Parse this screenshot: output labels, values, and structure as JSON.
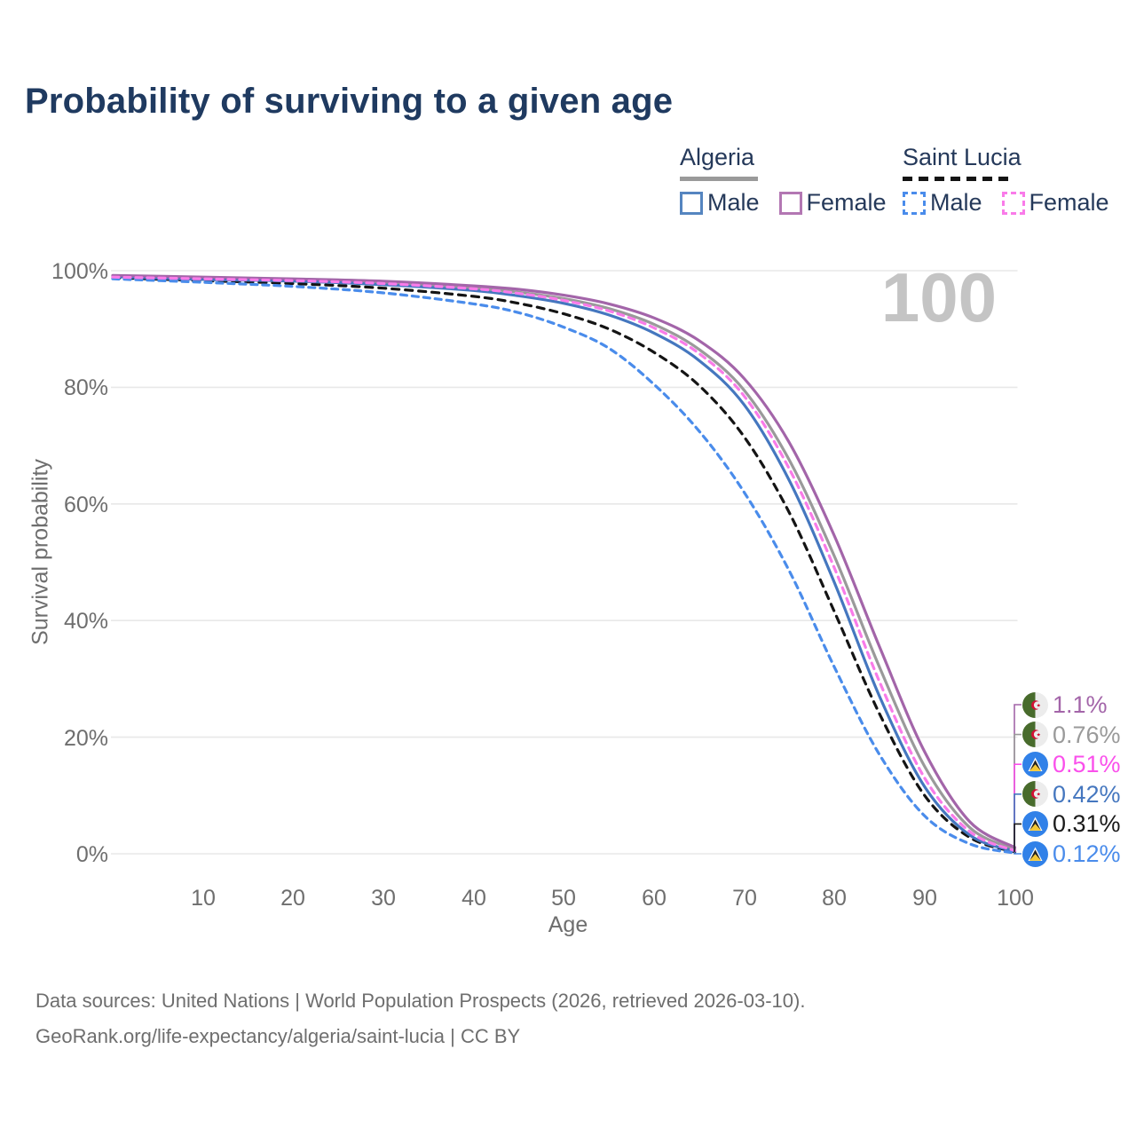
{
  "title": "Probability of surviving to a given age",
  "watermark": "100",
  "legend": {
    "groups": [
      {
        "country": "Algeria",
        "line_style": "solid",
        "underline_color": "#9a9a9a",
        "items": [
          {
            "label": "Male",
            "color": "#4577bf"
          },
          {
            "label": "Female",
            "color": "#b377b3"
          }
        ]
      },
      {
        "country": "Saint Lucia",
        "line_style": "dashed",
        "underline_color": "#141414",
        "items": [
          {
            "label": "Male",
            "color": "#4a8ceb"
          },
          {
            "label": "Female",
            "color": "#f97be9"
          }
        ]
      }
    ]
  },
  "axes": {
    "y_title": "Survival probability",
    "x_title": "Age",
    "y_ticks": [
      "0%",
      "20%",
      "40%",
      "60%",
      "80%",
      "100%"
    ],
    "x_ticks": [
      "10",
      "20",
      "30",
      "40",
      "50",
      "60",
      "70",
      "80",
      "90",
      "100"
    ]
  },
  "chart_data": {
    "type": "line",
    "title": "Probability of surviving to a given age",
    "xlabel": "Age",
    "ylabel": "Survival probability",
    "xlim": [
      0,
      100
    ],
    "ylim": [
      0,
      100
    ],
    "grid": "horizontal",
    "legend_position": "top-right",
    "x": [
      0,
      10,
      20,
      30,
      40,
      45,
      50,
      55,
      60,
      65,
      70,
      75,
      80,
      85,
      90,
      95,
      100
    ],
    "series": [
      {
        "name": "Algeria Both sexes",
        "country": "Algeria",
        "sex": "both",
        "color": "#9a9a9a",
        "dash": "none",
        "values": [
          99.1,
          98.7,
          98.4,
          97.9,
          97.0,
          96.3,
          95.2,
          93.5,
          90.8,
          86.5,
          79.5,
          67.5,
          51.0,
          32.0,
          15.0,
          4.5,
          0.76
        ]
      },
      {
        "name": "Saint Lucia Both sexes",
        "country": "Saint Lucia",
        "sex": "both",
        "color": "#141414",
        "dash": "8 7",
        "values": [
          98.8,
          98.3,
          97.8,
          97.0,
          95.6,
          94.4,
          92.6,
          90.0,
          86.0,
          80.3,
          71.5,
          58.5,
          41.5,
          24.0,
          10.0,
          2.8,
          0.31
        ]
      },
      {
        "name": "Algeria Male",
        "country": "Algeria",
        "sex": "male",
        "color": "#4577bf",
        "dash": "none",
        "values": [
          99.0,
          98.5,
          98.2,
          97.6,
          96.6,
          95.7,
          94.4,
          92.4,
          89.3,
          84.6,
          77.0,
          64.0,
          46.5,
          27.0,
          11.5,
          3.2,
          0.42
        ]
      },
      {
        "name": "Algeria Female",
        "country": "Algeria",
        "sex": "female",
        "color": "#a365a9",
        "dash": "none",
        "values": [
          99.2,
          98.9,
          98.6,
          98.2,
          97.4,
          96.8,
          95.8,
          94.3,
          91.9,
          88.0,
          81.5,
          70.5,
          54.5,
          35.5,
          17.5,
          5.5,
          1.1
        ]
      },
      {
        "name": "Saint Lucia Male",
        "country": "Saint Lucia",
        "sex": "male",
        "color": "#4a8ceb",
        "dash": "7 6",
        "values": [
          98.6,
          98.0,
          97.3,
          96.2,
          94.3,
          92.8,
          90.3,
          86.7,
          80.5,
          72.5,
          62.0,
          48.5,
          32.0,
          17.0,
          6.5,
          1.7,
          0.12
        ]
      },
      {
        "name": "Saint Lucia Female",
        "country": "Saint Lucia",
        "sex": "female",
        "color": "#f97be9",
        "dash": "7 6",
        "values": [
          98.9,
          98.6,
          98.3,
          97.8,
          96.9,
          96.1,
          94.9,
          93.1,
          90.2,
          85.8,
          78.5,
          66.0,
          49.0,
          29.5,
          13.0,
          3.8,
          0.51
        ]
      }
    ],
    "end_value_labels": [
      {
        "text": "1.1%",
        "color": "#a365a9",
        "flag": "algeria",
        "series": "Algeria Female"
      },
      {
        "text": "0.76%",
        "color": "#9a9a9a",
        "flag": "algeria",
        "series": "Algeria Both sexes"
      },
      {
        "text": "0.51%",
        "color": "#fa50eb",
        "flag": "saint-lucia",
        "series": "Saint Lucia Female"
      },
      {
        "text": "0.42%",
        "color": "#4577bf",
        "flag": "algeria",
        "series": "Algeria Male"
      },
      {
        "text": "0.31%",
        "color": "#1a1a1a",
        "flag": "saint-lucia",
        "series": "Saint Lucia Both sexes"
      },
      {
        "text": "0.12%",
        "color": "#4a8ceb",
        "flag": "saint-lucia",
        "series": "Saint Lucia Male"
      }
    ]
  },
  "footer": {
    "line1": "Data sources: United Nations | World Population Prospects (2026, retrieved 2026-03-10).",
    "line2": "GeoRank.org/life-expectancy/algeria/saint-lucia | CC BY"
  }
}
